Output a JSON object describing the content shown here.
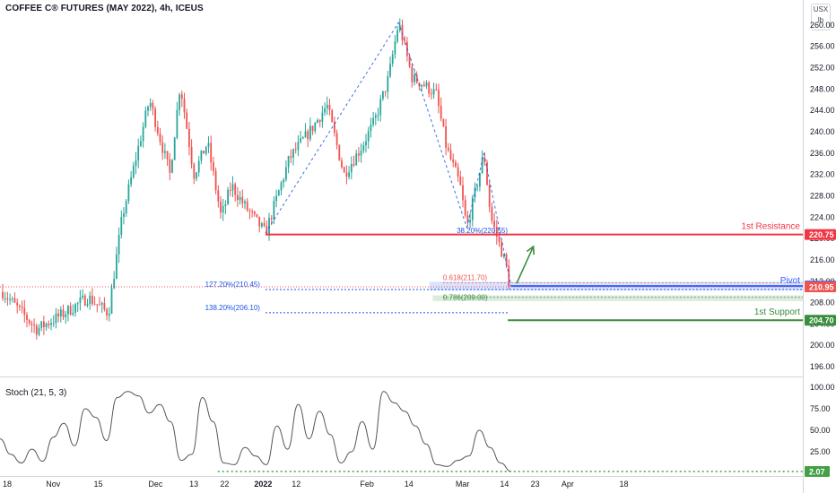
{
  "header": {
    "title": "COFFEE C® FUTURES (MAY 2022), 4h, ICEUS",
    "stoch_title": "Stoch (21, 5, 3)",
    "unit_top": "USX",
    "unit_bottom": "lb"
  },
  "colors": {
    "up": "#26a69a",
    "down": "#ef5350",
    "resistance": "#f23645",
    "pivot": "#2962ff",
    "support": "#388e3c",
    "fib": "#1e53e5",
    "stoch_line": "#555555",
    "stoch_level": "#43a047"
  },
  "annotations": {
    "resistance_label": "1st Resistance",
    "resistance_value": "220.75",
    "pivot_label": "Pivot",
    "pivot_value": "211.10",
    "current_value": "210.95",
    "support_label": "1st Support",
    "support_value": "204.70",
    "stoch_value": "2.07",
    "fib_382": "38.20%(220.55)",
    "fib_618": "0.618(211.70)",
    "fib_1272": "127.20%(210.45)",
    "fib_1382": "138.20%(206.10)",
    "fib_786": "0.786(209.00)"
  },
  "chart_data": [
    {
      "type": "candlestick",
      "title": "COFFEE C® FUTURES (MAY 2022), 4h, ICEUS",
      "x_ticks": [
        "18",
        "Nov",
        "15",
        "Dec",
        "13",
        "22",
        "2022",
        "12",
        "Feb",
        "14",
        "Mar",
        "14",
        "23",
        "Apr",
        "18"
      ],
      "y_ticks": [
        196,
        200,
        204,
        208,
        212,
        216,
        220,
        224,
        228,
        232,
        236,
        240,
        244,
        248,
        252,
        256,
        260
      ],
      "ylim": [
        194.5,
        263
      ],
      "grid": false,
      "price_path": [
        {
          "date": "2021-10-18",
          "price": 210
        },
        {
          "date": "2021-10-28",
          "price": 203
        },
        {
          "date": "2021-11-05",
          "price": 206
        },
        {
          "date": "2021-11-12",
          "price": 209
        },
        {
          "date": "2021-11-18",
          "price": 206
        },
        {
          "date": "2021-11-22",
          "price": 224
        },
        {
          "date": "2021-11-26",
          "price": 235
        },
        {
          "date": "2021-11-30",
          "price": 246
        },
        {
          "date": "2021-12-03",
          "price": 239
        },
        {
          "date": "2021-12-06",
          "price": 232
        },
        {
          "date": "2021-12-09",
          "price": 249
        },
        {
          "date": "2021-12-13",
          "price": 232
        },
        {
          "date": "2021-12-17",
          "price": 238
        },
        {
          "date": "2021-12-21",
          "price": 224
        },
        {
          "date": "2021-12-24",
          "price": 230
        },
        {
          "date": "2021-12-28",
          "price": 226
        },
        {
          "date": "2022-01-03",
          "price": 221
        },
        {
          "date": "2022-01-10",
          "price": 235
        },
        {
          "date": "2022-01-17",
          "price": 241
        },
        {
          "date": "2022-01-21",
          "price": 245
        },
        {
          "date": "2022-01-26",
          "price": 232
        },
        {
          "date": "2022-01-31",
          "price": 237
        },
        {
          "date": "2022-02-04",
          "price": 242
        },
        {
          "date": "2022-02-08",
          "price": 250
        },
        {
          "date": "2022-02-11",
          "price": 260.5
        },
        {
          "date": "2022-02-15",
          "price": 250
        },
        {
          "date": "2022-02-18",
          "price": 249
        },
        {
          "date": "2022-02-22",
          "price": 247
        },
        {
          "date": "2022-02-25",
          "price": 237
        },
        {
          "date": "2022-03-01",
          "price": 230
        },
        {
          "date": "2022-03-03",
          "price": 222
        },
        {
          "date": "2022-03-07",
          "price": 233
        },
        {
          "date": "2022-03-08",
          "price": 236
        },
        {
          "date": "2022-03-10",
          "price": 224
        },
        {
          "date": "2022-03-14",
          "price": 216
        },
        {
          "date": "2022-03-16",
          "price": 210.95
        }
      ],
      "levels": [
        {
          "name": "1st Resistance",
          "value": 220.75
        },
        {
          "name": "Pivot",
          "value": 211.1
        },
        {
          "name": "1st Support",
          "value": 204.7
        }
      ],
      "fib_levels": [
        {
          "label": "38.20%(220.55)",
          "value": 220.55
        },
        {
          "label": "0.618(211.70)",
          "value": 211.7
        },
        {
          "label": "127.20%(210.45)",
          "value": 210.45
        },
        {
          "label": "138.20%(206.10)",
          "value": 206.1
        },
        {
          "label": "0.786(209.00)",
          "value": 209.0
        }
      ],
      "last_price": 210.95
    },
    {
      "type": "line",
      "title": "Stoch (21, 5, 3)",
      "y_ticks": [
        25,
        50,
        75,
        100
      ],
      "y_tick_labels": [
        "25.00",
        "50.00",
        "75.00",
        "100.00"
      ],
      "ylim": [
        0,
        100
      ],
      "last_value": 2.07,
      "values": [
        40,
        22,
        12,
        28,
        14,
        42,
        58,
        32,
        75,
        65,
        38,
        88,
        95,
        90,
        70,
        80,
        60,
        15,
        22,
        88,
        60,
        12,
        10,
        30,
        20,
        10,
        55,
        28,
        80,
        40,
        72,
        45,
        12,
        25,
        60,
        28,
        95,
        82,
        72,
        55,
        34,
        10,
        8,
        15,
        20,
        50,
        30,
        12,
        2.07
      ]
    }
  ]
}
